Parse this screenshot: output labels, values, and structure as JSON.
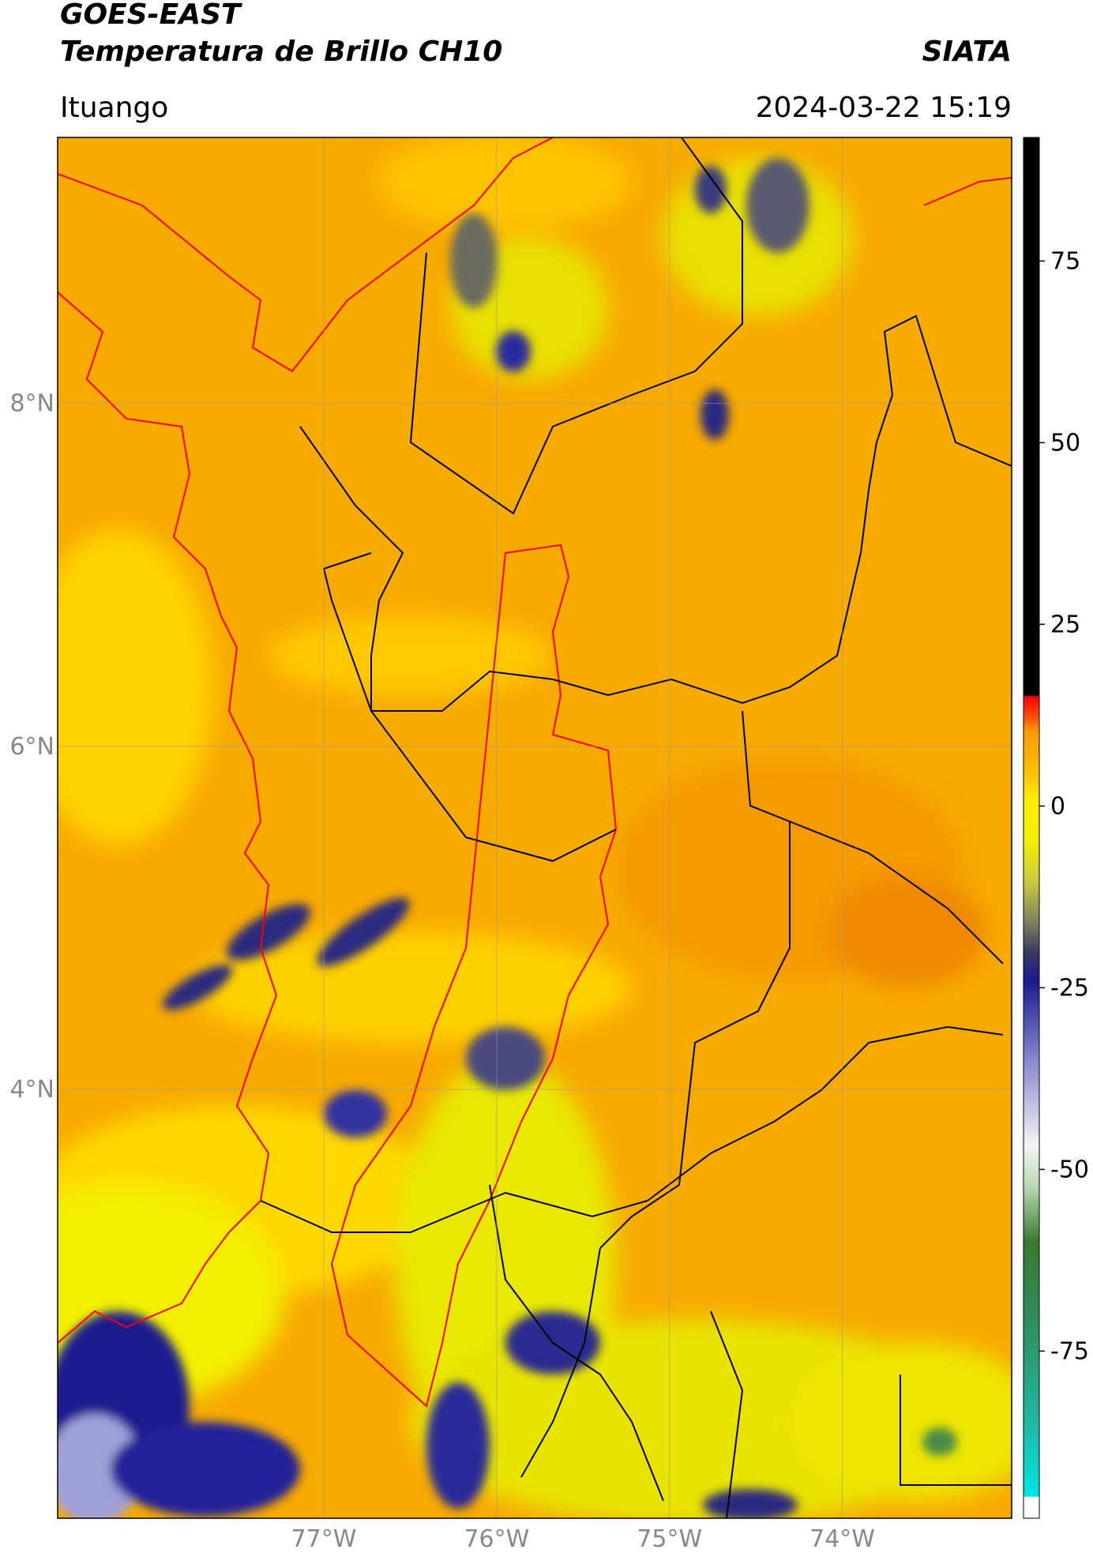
{
  "header": {
    "title": "GOES-EAST",
    "subtitle": "Temperatura de Brillo CH10",
    "source": "SIATA",
    "location": "Ituango",
    "datetime": "2024-03-22 15:19"
  },
  "map": {
    "xlim": [
      -78.54,
      -73.02
    ],
    "ylim": [
      1.5,
      9.55
    ],
    "xticks": [
      {
        "value": -77,
        "label": "77°W"
      },
      {
        "value": -76,
        "label": "76°W"
      },
      {
        "value": -75,
        "label": "75°W"
      },
      {
        "value": -74,
        "label": "74°W"
      }
    ],
    "yticks": [
      {
        "value": 4,
        "label": "4°N"
      },
      {
        "value": 6,
        "label": "6°N"
      },
      {
        "value": 8,
        "label": "8°N"
      }
    ],
    "grid": true
  },
  "colorbar": {
    "lim": [
      -98,
      92
    ],
    "ticks": [
      -75,
      -50,
      -25,
      0,
      25,
      50,
      75
    ]
  }
}
